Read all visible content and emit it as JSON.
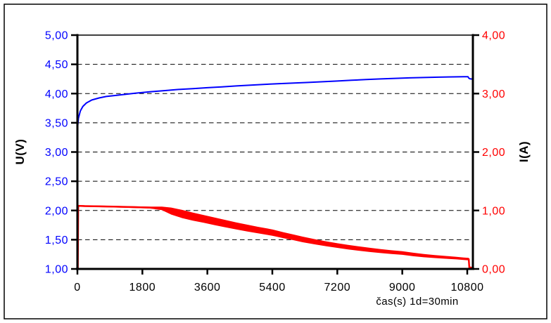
{
  "chart_data": {
    "type": "line",
    "title": "",
    "xlabel": "čas(s) 1d=30min",
    "grid": "horizontal dashed lines every 0.5 V (left scale), solid line at top (5,00)",
    "legend_position": "none",
    "x_axis": {
      "ticks": [
        "0",
        "1800",
        "3600",
        "5400",
        "7200",
        "9000",
        "10800"
      ],
      "tick_values": [
        0,
        1800,
        3600,
        5400,
        7200,
        9000,
        10800
      ],
      "range": [
        0,
        10956
      ]
    },
    "left_axis": {
      "label": "U(V)",
      "ticks": [
        "5,00",
        "4,50",
        "4,00",
        "3,50",
        "3,00",
        "2,50",
        "2,00",
        "1,50",
        "1,00"
      ],
      "tick_values": [
        5,
        4.5,
        4,
        3.5,
        3,
        2.5,
        2,
        1.5,
        1
      ],
      "range": [
        1,
        5
      ],
      "color": "#0000ff"
    },
    "right_axis": {
      "label": "I(A)",
      "ticks": [
        "4,00",
        "3,00",
        "2,00",
        "1,00",
        "0,00"
      ],
      "tick_values": [
        4,
        3,
        2,
        1,
        0
      ],
      "range": [
        0,
        4
      ],
      "color": "#ff0000"
    },
    "series": [
      {
        "name": "U",
        "axis": "left",
        "color": "#0000ff",
        "points": [
          [
            5,
            3.43
          ],
          [
            30,
            3.58
          ],
          [
            80,
            3.7
          ],
          [
            150,
            3.78
          ],
          [
            250,
            3.84
          ],
          [
            400,
            3.89
          ],
          [
            600,
            3.925
          ],
          [
            800,
            3.95
          ],
          [
            1000,
            3.965
          ],
          [
            1300,
            3.985
          ],
          [
            1600,
            4.005
          ],
          [
            2000,
            4.03
          ],
          [
            2400,
            4.05
          ],
          [
            2800,
            4.07
          ],
          [
            3200,
            4.085
          ],
          [
            3600,
            4.1
          ],
          [
            4000,
            4.115
          ],
          [
            4400,
            4.13
          ],
          [
            4800,
            4.145
          ],
          [
            5200,
            4.158
          ],
          [
            5600,
            4.17
          ],
          [
            6000,
            4.18
          ],
          [
            6400,
            4.19
          ],
          [
            6800,
            4.202
          ],
          [
            7200,
            4.215
          ],
          [
            7600,
            4.228
          ],
          [
            8000,
            4.24
          ],
          [
            8400,
            4.25
          ],
          [
            8800,
            4.26
          ],
          [
            9200,
            4.268
          ],
          [
            9600,
            4.275
          ],
          [
            10000,
            4.28
          ],
          [
            10400,
            4.285
          ],
          [
            10700,
            4.288
          ],
          [
            10820,
            4.288
          ],
          [
            10845,
            4.262
          ],
          [
            10880,
            4.252
          ],
          [
            10956,
            4.247
          ]
        ]
      },
      {
        "name": "I",
        "axis": "right",
        "color": "#ff0000",
        "points_with_noise_halfwidth": [
          [
            12,
            0.0,
            0.012
          ],
          [
            22,
            1.08,
            0.013
          ],
          [
            200,
            1.075,
            0.013
          ],
          [
            600,
            1.07,
            0.013
          ],
          [
            1000,
            1.065,
            0.013
          ],
          [
            1500,
            1.058,
            0.014
          ],
          [
            2000,
            1.05,
            0.016
          ],
          [
            2340,
            1.035,
            0.03
          ],
          [
            2600,
            0.99,
            0.06
          ],
          [
            2900,
            0.94,
            0.07
          ],
          [
            3200,
            0.895,
            0.068
          ],
          [
            3500,
            0.855,
            0.066
          ],
          [
            3800,
            0.815,
            0.065
          ],
          [
            4100,
            0.775,
            0.063
          ],
          [
            4400,
            0.735,
            0.06
          ],
          [
            4700,
            0.7,
            0.058
          ],
          [
            5000,
            0.665,
            0.056
          ],
          [
            5400,
            0.622,
            0.054
          ],
          [
            5700,
            0.578,
            0.051
          ],
          [
            6000,
            0.538,
            0.049
          ],
          [
            6240,
            0.505,
            0.048
          ],
          [
            6600,
            0.462,
            0.044
          ],
          [
            6900,
            0.43,
            0.042
          ],
          [
            7200,
            0.4,
            0.04
          ],
          [
            7500,
            0.372,
            0.039
          ],
          [
            7800,
            0.348,
            0.037
          ],
          [
            8100,
            0.326,
            0.036
          ],
          [
            8400,
            0.306,
            0.034
          ],
          [
            8700,
            0.288,
            0.032
          ],
          [
            9000,
            0.272,
            0.031
          ],
          [
            9300,
            0.247,
            0.03
          ],
          [
            9600,
            0.228,
            0.028
          ],
          [
            9900,
            0.212,
            0.026
          ],
          [
            10200,
            0.198,
            0.024
          ],
          [
            10500,
            0.185,
            0.022
          ],
          [
            10700,
            0.175,
            0.021
          ],
          [
            10840,
            0.168,
            0.02
          ],
          [
            10856,
            0.025,
            0.014
          ],
          [
            10956,
            0.022,
            0.011
          ]
        ]
      }
    ]
  },
  "colors": {
    "voltage_series": "#0000ff",
    "current_series": "#ff0000",
    "axis": "#000000",
    "background": "#ffffff"
  }
}
